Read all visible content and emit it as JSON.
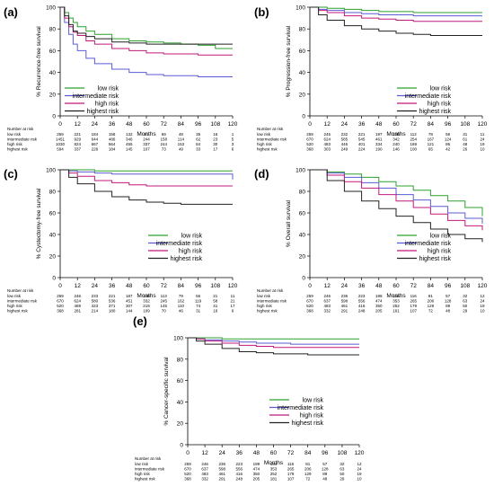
{
  "figure": {
    "x_label": "Months",
    "risk_table_title": "Number at risk",
    "series_names": [
      "low risk",
      "intermediate risk",
      "high risk",
      "highest risk"
    ],
    "series_colors": [
      "#2ca02c",
      "#5b5bd6",
      "#c2187a",
      "#222222"
    ]
  },
  "chart_data": [
    {
      "panel": "(a)",
      "type": "line",
      "title": "",
      "xlabel": "Months",
      "ylabel": "% Recurrence-free survival",
      "xlim": [
        0,
        120
      ],
      "ylim": [
        0,
        100
      ],
      "xticks": [
        "0",
        "12",
        "24",
        "36",
        "48",
        "60",
        "72",
        "84",
        "96",
        "108",
        "120"
      ],
      "yticks": [
        "0",
        "20",
        "40",
        "60",
        "80",
        "100"
      ],
      "legend": "bottom-left",
      "x": [
        0,
        3,
        6,
        9,
        12,
        18,
        24,
        36,
        48,
        60,
        72,
        84,
        96,
        108,
        120
      ],
      "series": [
        {
          "name": "low risk",
          "values": [
            100,
            95,
            90,
            86,
            82,
            78,
            75,
            71,
            69,
            68,
            67,
            66,
            65,
            62,
            62
          ]
        },
        {
          "name": "intermediate risk",
          "values": [
            100,
            86,
            75,
            66,
            60,
            53,
            48,
            43,
            40,
            38,
            37,
            37,
            36,
            36,
            36
          ]
        },
        {
          "name": "high risk",
          "values": [
            100,
            90,
            82,
            77,
            74,
            69,
            66,
            62,
            60,
            58,
            57,
            57,
            56,
            56,
            56
          ]
        },
        {
          "name": "highest risk",
          "values": [
            100,
            92,
            84,
            78,
            76,
            73,
            71,
            68,
            67,
            66,
            66,
            66,
            66,
            66,
            66
          ]
        }
      ],
      "risk_table": {
        "columns": [
          "259",
          "221",
          "184",
          "158",
          "132",
          "91",
          "69",
          "48",
          "35",
          "16",
          "1"
        ],
        "rows": [
          {
            "name": "low risk",
            "values": [
              "259",
              "221",
              "184",
              "158",
              "132",
              "91",
              "69",
              "48",
              "35",
              "16",
              "1"
            ]
          },
          {
            "name": "intermediate risk",
            "values": [
              "1451",
              "929",
              "644",
              "486",
              "346",
              "244",
              "158",
              "114",
              "62",
              "23",
              "5"
            ]
          },
          {
            "name": "high risk",
            "values": [
              "1030",
              "824",
              "667",
              "564",
              "455",
              "337",
              "244",
              "153",
              "84",
              "30",
              "3"
            ]
          },
          {
            "name": "highest risk",
            "values": [
              "594",
              "337",
              "228",
              "184",
              "145",
              "107",
              "73",
              "49",
              "33",
              "17",
              "6"
            ]
          }
        ]
      }
    },
    {
      "panel": "(b)",
      "type": "line",
      "title": "",
      "xlabel": "Months",
      "ylabel": "% Progression-free survival",
      "xlim": [
        0,
        120
      ],
      "ylim": [
        0,
        100
      ],
      "xticks": [
        "0",
        "12",
        "24",
        "36",
        "48",
        "60",
        "72",
        "84",
        "96",
        "108",
        "120"
      ],
      "yticks": [
        "0",
        "20",
        "40",
        "60",
        "80",
        "100"
      ],
      "legend": "bottom-right",
      "x": [
        0,
        6,
        12,
        24,
        36,
        48,
        60,
        72,
        84,
        96,
        108,
        120
      ],
      "series": [
        {
          "name": "low risk",
          "values": [
            100,
            100,
            99,
            98,
            97,
            96,
            96,
            95,
            95,
            95,
            95,
            95
          ]
        },
        {
          "name": "intermediate risk",
          "values": [
            100,
            98,
            97,
            95,
            94,
            93,
            93,
            92,
            92,
            92,
            92,
            92
          ]
        },
        {
          "name": "high risk",
          "values": [
            100,
            97,
            95,
            92,
            90,
            89,
            88,
            87,
            87,
            87,
            87,
            87
          ]
        },
        {
          "name": "highest risk",
          "values": [
            100,
            93,
            88,
            83,
            80,
            78,
            76,
            75,
            74,
            74,
            74,
            74
          ]
        }
      ],
      "risk_table": {
        "rows": [
          {
            "name": "low risk",
            "values": [
              "259",
              "245",
              "232",
              "221",
              "197",
              "150",
              "112",
              "78",
              "56",
              "31",
              "11"
            ]
          },
          {
            "name": "intermediate risk",
            "values": [
              "670",
              "624",
              "585",
              "545",
              "461",
              "342",
              "254",
              "167",
              "124",
              "61",
              "24"
            ]
          },
          {
            "name": "high risk",
            "values": [
              "520",
              "483",
              "446",
              "401",
              "334",
              "240",
              "169",
              "121",
              "86",
              "48",
              "19"
            ]
          },
          {
            "name": "highest risk",
            "values": [
              "368",
              "303",
              "249",
              "224",
              "190",
              "146",
              "100",
              "65",
              "42",
              "26",
              "10"
            ]
          }
        ]
      }
    },
    {
      "panel": "(c)",
      "type": "line",
      "title": "",
      "xlabel": "Months",
      "ylabel": "% Cystectomy-free survival",
      "xlim": [
        0,
        120
      ],
      "ylim": [
        0,
        100
      ],
      "xticks": [
        "0",
        "12",
        "24",
        "36",
        "48",
        "60",
        "72",
        "84",
        "96",
        "108",
        "120"
      ],
      "yticks": [
        "0",
        "20",
        "40",
        "60",
        "80",
        "100"
      ],
      "legend": "bottom-right",
      "x": [
        0,
        6,
        12,
        24,
        36,
        48,
        60,
        72,
        84,
        96,
        108,
        118,
        120
      ],
      "series": [
        {
          "name": "low risk",
          "values": [
            100,
            100,
            100,
            99,
            99,
            99,
            99,
            99,
            99,
            99,
            99,
            99,
            99
          ]
        },
        {
          "name": "intermediate risk",
          "values": [
            100,
            99,
            98,
            97,
            96,
            96,
            96,
            96,
            96,
            96,
            96,
            96,
            91
          ]
        },
        {
          "name": "high risk",
          "values": [
            100,
            97,
            94,
            90,
            88,
            86,
            85,
            85,
            85,
            85,
            85,
            85,
            85
          ]
        },
        {
          "name": "highest risk",
          "values": [
            100,
            93,
            87,
            80,
            75,
            72,
            70,
            69,
            68,
            68,
            68,
            68,
            68
          ]
        }
      ],
      "risk_table": {
        "rows": [
          {
            "name": "low risk",
            "values": [
              "259",
              "246",
              "233",
              "221",
              "187",
              "150",
              "113",
              "79",
              "56",
              "21",
              "11"
            ]
          },
          {
            "name": "intermediate risk",
            "values": [
              "670",
              "624",
              "580",
              "536",
              "451",
              "332",
              "245",
              "162",
              "119",
              "58",
              "21"
            ]
          },
          {
            "name": "high risk",
            "values": [
              "520",
              "469",
              "423",
              "371",
              "307",
              "219",
              "145",
              "110",
              "74",
              "41",
              "17"
            ]
          },
          {
            "name": "highest risk",
            "values": [
              "368",
              "281",
              "214",
              "180",
              "144",
              "109",
              "70",
              "46",
              "31",
              "16",
              "6"
            ]
          }
        ]
      }
    },
    {
      "panel": "(d)",
      "type": "line",
      "title": "",
      "xlabel": "Months",
      "ylabel": "% Overall survival",
      "xlim": [
        0,
        120
      ],
      "ylim": [
        0,
        100
      ],
      "xticks": [
        "0",
        "12",
        "24",
        "36",
        "48",
        "60",
        "72",
        "84",
        "96",
        "108",
        "120"
      ],
      "yticks": [
        "0",
        "20",
        "40",
        "60",
        "80",
        "100"
      ],
      "legend": "bottom-right",
      "x": [
        0,
        12,
        24,
        36,
        48,
        60,
        72,
        84,
        96,
        108,
        120
      ],
      "series": [
        {
          "name": "low risk",
          "values": [
            100,
            98,
            96,
            93,
            89,
            85,
            81,
            76,
            71,
            65,
            57
          ]
        },
        {
          "name": "intermediate risk",
          "values": [
            100,
            97,
            93,
            88,
            83,
            77,
            72,
            66,
            60,
            55,
            50
          ]
        },
        {
          "name": "high risk",
          "values": [
            100,
            95,
            89,
            83,
            77,
            71,
            65,
            59,
            53,
            48,
            44
          ]
        },
        {
          "name": "highest risk",
          "values": [
            100,
            90,
            80,
            71,
            64,
            57,
            51,
            45,
            40,
            36,
            33
          ]
        }
      ],
      "risk_table": {
        "rows": [
          {
            "name": "low risk",
            "values": [
              "259",
              "246",
              "236",
              "223",
              "199",
              "154",
              "116",
              "81",
              "57",
              "32",
              "12"
            ]
          },
          {
            "name": "intermediate risk",
            "values": [
              "670",
              "637",
              "598",
              "556",
              "474",
              "353",
              "265",
              "206",
              "128",
              "63",
              "24"
            ]
          },
          {
            "name": "high risk",
            "values": [
              "520",
              "483",
              "461",
              "416",
              "350",
              "252",
              "179",
              "129",
              "89",
              "50",
              "19"
            ]
          },
          {
            "name": "highest risk",
            "values": [
              "368",
              "332",
              "291",
              "248",
              "205",
              "161",
              "107",
              "72",
              "48",
              "29",
              "10"
            ]
          }
        ]
      }
    },
    {
      "panel": "(e)",
      "type": "line",
      "title": "",
      "xlabel": "Months",
      "ylabel": "% Cancer-specific survival",
      "xlim": [
        0,
        120
      ],
      "ylim": [
        0,
        100
      ],
      "xticks": [
        "0",
        "12",
        "24",
        "36",
        "48",
        "60",
        "72",
        "84",
        "96",
        "108",
        "120"
      ],
      "yticks": [
        "0",
        "20",
        "40",
        "60",
        "80",
        "100"
      ],
      "legend": "bottom-right",
      "x": [
        0,
        6,
        12,
        24,
        36,
        48,
        60,
        72,
        84,
        96,
        108,
        120
      ],
      "series": [
        {
          "name": "low risk",
          "values": [
            100,
            100,
            100,
            99,
            99,
            99,
            99,
            99,
            99,
            99,
            99,
            99
          ]
        },
        {
          "name": "intermediate risk",
          "values": [
            100,
            99,
            98,
            97,
            96,
            95,
            95,
            94,
            94,
            94,
            94,
            94
          ]
        },
        {
          "name": "high risk",
          "values": [
            100,
            99,
            97,
            95,
            93,
            92,
            91,
            91,
            91,
            91,
            91,
            91
          ]
        },
        {
          "name": "highest risk",
          "values": [
            100,
            97,
            94,
            90,
            87,
            86,
            85,
            85,
            84,
            84,
            84,
            84
          ]
        }
      ],
      "risk_table": {
        "rows": [
          {
            "name": "low risk",
            "values": [
              "259",
              "246",
              "236",
              "223",
              "199",
              "154",
              "116",
              "81",
              "57",
              "32",
              "12"
            ]
          },
          {
            "name": "intermediate risk",
            "values": [
              "670",
              "637",
              "598",
              "556",
              "474",
              "353",
              "265",
              "206",
              "128",
              "63",
              "24"
            ]
          },
          {
            "name": "high risk",
            "values": [
              "520",
              "483",
              "461",
              "416",
              "350",
              "252",
              "179",
              "129",
              "89",
              "50",
              "19"
            ]
          },
          {
            "name": "highest risk",
            "values": [
              "368",
              "332",
              "291",
              "248",
              "205",
              "181",
              "107",
              "72",
              "48",
              "29",
              "10"
            ]
          }
        ]
      }
    }
  ]
}
